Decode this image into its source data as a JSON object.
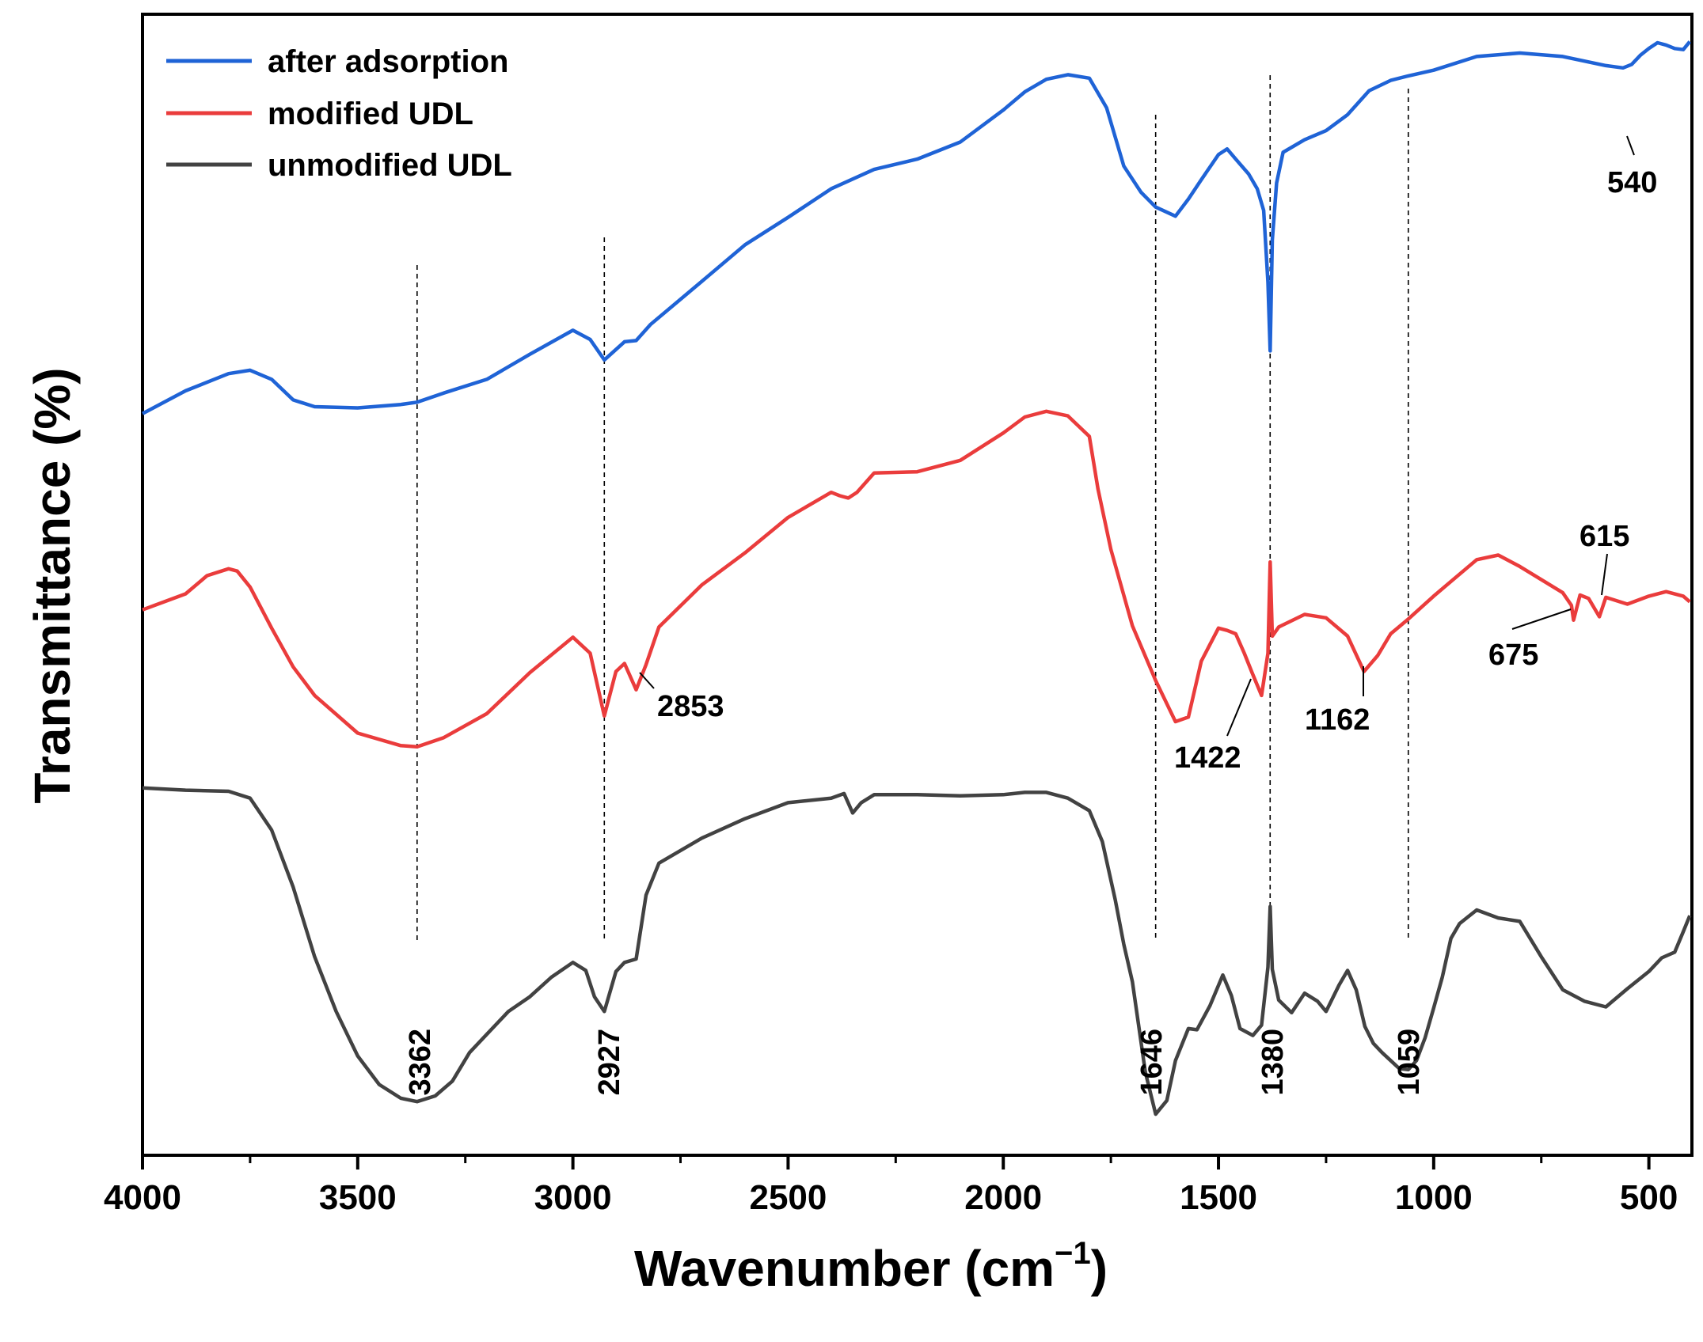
{
  "chart_data": {
    "type": "line",
    "title": "",
    "xlabel": "Wavenumber (cm",
    "xlabel_sup": "−1",
    "xlabel_close": ")",
    "ylabel": "Transmittance (%)",
    "xlim": [
      4000,
      400
    ],
    "ylim": [
      0,
      100
    ],
    "x_reversed": true,
    "x_ticks": [
      {
        "value": 4000,
        "label": "4000"
      },
      {
        "value": 3500,
        "label": "3500"
      },
      {
        "value": 3000,
        "label": "3000"
      },
      {
        "value": 2500,
        "label": "2500"
      },
      {
        "value": 2000,
        "label": "2000"
      },
      {
        "value": 1500,
        "label": "1500"
      },
      {
        "value": 1000,
        "label": "1000"
      },
      {
        "value": 500,
        "label": "500"
      }
    ],
    "legend_position": "top-left",
    "series": [
      {
        "name": "after adsorption",
        "color": "#1f63d6",
        "x": [
          4000,
          3900,
          3800,
          3750,
          3700,
          3650,
          3600,
          3500,
          3400,
          3362,
          3300,
          3200,
          3100,
          3000,
          2960,
          2927,
          2880,
          2853,
          2820,
          2700,
          2600,
          2500,
          2400,
          2300,
          2200,
          2100,
          2000,
          1950,
          1900,
          1850,
          1800,
          1760,
          1720,
          1680,
          1646,
          1600,
          1570,
          1540,
          1500,
          1480,
          1460,
          1430,
          1410,
          1395,
          1385,
          1380,
          1375,
          1365,
          1350,
          1300,
          1250,
          1200,
          1150,
          1100,
          1059,
          1000,
          900,
          800,
          700,
          600,
          560,
          540,
          520,
          500,
          480,
          460,
          440,
          420,
          405
        ],
        "y": [
          65,
          67,
          68.5,
          68.8,
          68,
          66.2,
          65.6,
          65.5,
          65.8,
          66.0,
          66.8,
          68.0,
          70.2,
          72.3,
          71.5,
          69.7,
          71.3,
          71.4,
          72.8,
          76.6,
          79.8,
          82.2,
          84.7,
          86.4,
          87.3,
          88.8,
          91.6,
          93.2,
          94.3,
          94.7,
          94.4,
          91.8,
          86.7,
          84.4,
          83.1,
          82.3,
          83.8,
          85.5,
          87.7,
          88.2,
          87.3,
          86.0,
          84.7,
          82.8,
          76.5,
          70.5,
          80.2,
          85.2,
          87.9,
          89.0,
          89.8,
          91.2,
          93.3,
          94.2,
          94.6,
          95.1,
          96.3,
          96.6,
          96.3,
          95.5,
          95.3,
          95.6,
          96.4,
          97.0,
          97.5,
          97.3,
          97.0,
          96.9,
          97.6
        ]
      },
      {
        "name": "modified UDL",
        "color": "#ea3c3c",
        "x": [
          4000,
          3900,
          3850,
          3800,
          3780,
          3750,
          3700,
          3650,
          3600,
          3500,
          3400,
          3362,
          3300,
          3200,
          3100,
          3000,
          2960,
          2927,
          2900,
          2880,
          2853,
          2830,
          2800,
          2700,
          2600,
          2500,
          2400,
          2380,
          2360,
          2340,
          2300,
          2200,
          2100,
          2000,
          1950,
          1900,
          1850,
          1800,
          1780,
          1750,
          1700,
          1646,
          1600,
          1570,
          1540,
          1500,
          1480,
          1460,
          1440,
          1422,
          1400,
          1385,
          1380,
          1375,
          1360,
          1300,
          1250,
          1200,
          1162,
          1130,
          1100,
          1059,
          1000,
          950,
          900,
          850,
          800,
          700,
          680,
          675,
          660,
          640,
          615,
          600,
          550,
          500,
          460,
          420,
          405
        ],
        "y": [
          47.8,
          49.2,
          50.8,
          51.4,
          51.2,
          49.8,
          46.2,
          42.8,
          40.3,
          37.0,
          35.9,
          35.8,
          36.6,
          38.7,
          42.3,
          45.4,
          44.0,
          38.5,
          42.4,
          43.1,
          40.8,
          43.0,
          46.3,
          50.0,
          52.8,
          55.9,
          58.1,
          57.8,
          57.6,
          58.1,
          59.8,
          59.9,
          60.9,
          63.3,
          64.7,
          65.2,
          64.8,
          63.0,
          58.4,
          53.1,
          46.4,
          41.6,
          38.0,
          38.4,
          43.3,
          46.2,
          46.0,
          45.7,
          44.0,
          42.3,
          40.3,
          44.0,
          52.0,
          45.5,
          46.3,
          47.4,
          47.1,
          45.5,
          42.4,
          43.8,
          45.7,
          47.0,
          49.0,
          50.6,
          52.2,
          52.6,
          51.6,
          49.3,
          48.2,
          46.9,
          49.1,
          48.8,
          47.2,
          48.9,
          48.3,
          49.0,
          49.4,
          49.0,
          48.5
        ]
      },
      {
        "name": "unmodified UDL",
        "color": "#424242",
        "x": [
          4000,
          3900,
          3800,
          3750,
          3700,
          3650,
          3600,
          3550,
          3500,
          3450,
          3400,
          3362,
          3320,
          3280,
          3240,
          3200,
          3150,
          3100,
          3050,
          3000,
          2970,
          2950,
          2927,
          2900,
          2880,
          2853,
          2830,
          2800,
          2700,
          2600,
          2500,
          2400,
          2370,
          2350,
          2330,
          2300,
          2200,
          2100,
          2000,
          1950,
          1900,
          1850,
          1800,
          1770,
          1740,
          1720,
          1700,
          1670,
          1646,
          1620,
          1600,
          1570,
          1550,
          1520,
          1490,
          1470,
          1450,
          1420,
          1400,
          1385,
          1380,
          1375,
          1360,
          1330,
          1300,
          1270,
          1250,
          1220,
          1200,
          1180,
          1160,
          1140,
          1120,
          1100,
          1080,
          1059,
          1040,
          1020,
          1000,
          980,
          960,
          940,
          920,
          900,
          850,
          800,
          750,
          700,
          650,
          600,
          550,
          500,
          470,
          440,
          420,
          405
        ],
        "y": [
          32.2,
          32.0,
          31.9,
          31.3,
          28.5,
          23.5,
          17.4,
          12.6,
          8.7,
          6.2,
          5.0,
          4.7,
          5.2,
          6.5,
          9.0,
          10.6,
          12.6,
          13.9,
          15.6,
          16.9,
          16.2,
          13.9,
          12.6,
          16.1,
          16.9,
          17.2,
          22.8,
          25.6,
          27.8,
          29.5,
          30.9,
          31.3,
          31.7,
          30.0,
          30.9,
          31.6,
          31.6,
          31.5,
          31.6,
          31.8,
          31.8,
          31.3,
          30.2,
          27.5,
          22.4,
          18.5,
          15.2,
          7.3,
          3.6,
          4.8,
          8.3,
          11.1,
          11.0,
          13.1,
          15.8,
          14.0,
          11.1,
          10.5,
          11.4,
          16.5,
          21.8,
          16.3,
          13.6,
          12.5,
          14.2,
          13.5,
          12.6,
          14.9,
          16.2,
          14.5,
          11.3,
          9.8,
          9.0,
          8.3,
          7.6,
          7.5,
          8.3,
          10.3,
          12.9,
          15.6,
          19.0,
          20.3,
          20.9,
          21.5,
          20.8,
          20.5,
          17.4,
          14.5,
          13.5,
          13.0,
          14.6,
          16.1,
          17.3,
          17.8,
          19.6,
          21.0
        ]
      }
    ],
    "reference_lines": [
      {
        "x": 3362,
        "label": "3362"
      },
      {
        "x": 2927,
        "label": "2927"
      },
      {
        "x": 1646,
        "label": "1646"
      },
      {
        "x": 1380,
        "label": "1380"
      },
      {
        "x": 1059,
        "label": "1059"
      }
    ],
    "annotations": [
      {
        "text": "2853",
        "x": 2853,
        "series": "modified UDL"
      },
      {
        "text": "1422",
        "x": 1422,
        "series": "modified UDL"
      },
      {
        "text": "1162",
        "x": 1162,
        "series": "modified UDL"
      },
      {
        "text": "675",
        "x": 675,
        "series": "modified UDL"
      },
      {
        "text": "615",
        "x": 615,
        "series": "modified UDL"
      },
      {
        "text": "540",
        "x": 540,
        "series": "after adsorption"
      }
    ]
  }
}
